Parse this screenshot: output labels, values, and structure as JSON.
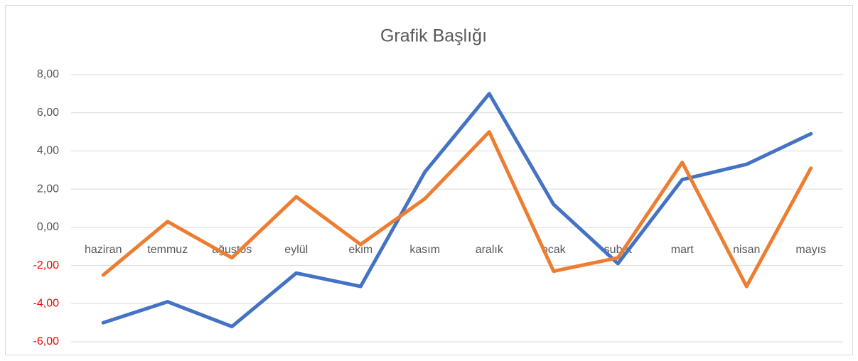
{
  "chart_data": {
    "type": "line",
    "title": "Grafik Başlığı",
    "categories": [
      "haziran",
      "temmuz",
      "ağustos",
      "eylül",
      "ekim",
      "kasım",
      "aralık",
      "ocak",
      "şubat",
      "mart",
      "nisan",
      "mayıs"
    ],
    "series": [
      {
        "color": "#4472c4",
        "values": [
          -5.0,
          -3.9,
          -5.2,
          -2.4,
          -3.1,
          2.9,
          7.0,
          1.2,
          -1.9,
          2.5,
          3.3,
          4.9
        ]
      },
      {
        "color": "#ed7d31",
        "values": [
          -2.5,
          0.3,
          -1.6,
          1.6,
          -0.9,
          1.5,
          5.0,
          -2.3,
          -1.6,
          3.4,
          -3.1,
          3.1
        ]
      }
    ],
    "ylim": [
      -6,
      8
    ],
    "yticks": [
      {
        "value": -6,
        "label": "-6,00"
      },
      {
        "value": -4,
        "label": "-4,00"
      },
      {
        "value": -2,
        "label": "-2,00"
      },
      {
        "value": 0,
        "label": "0,00"
      },
      {
        "value": 2,
        "label": "2,00"
      },
      {
        "value": 4,
        "label": "4,00"
      },
      {
        "value": 6,
        "label": "6,00"
      },
      {
        "value": 8,
        "label": "8,00"
      }
    ],
    "negative_tick_color": "#ff0000",
    "grid": true
  }
}
